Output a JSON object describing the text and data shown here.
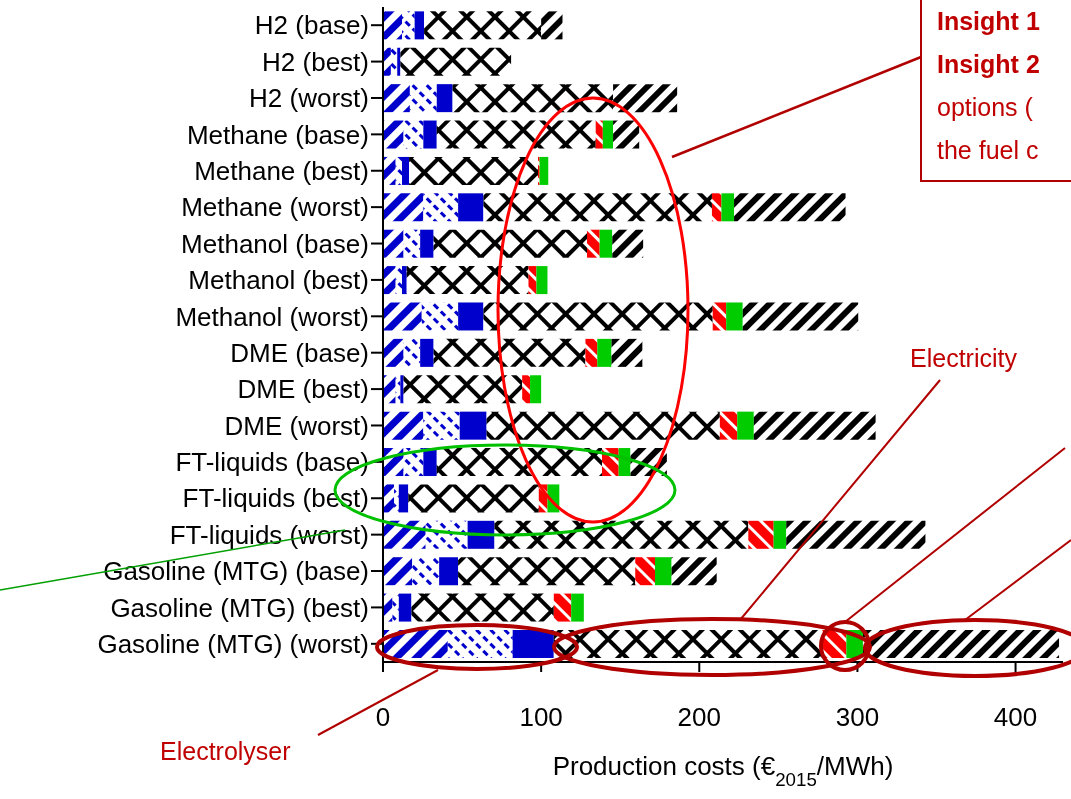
{
  "chart_data": {
    "type": "bar",
    "orientation": "horizontal",
    "stacked": true,
    "categories": [
      "H2 (base)",
      "H2 (best)",
      "H2 (worst)",
      "Methane (base)",
      "Methane (best)",
      "Methane (worst)",
      "Methanol (base)",
      "Methanol (best)",
      "Methanol (worst)",
      "DME (base)",
      "DME (best)",
      "DME (worst)",
      "FT-liquids (base)",
      "FT-liquids (best)",
      "FT-liquids (worst)",
      "Gasoline (MTG) (base)",
      "Gasoline (MTG) (best)",
      "Gasoline (MTG) (worst)"
    ],
    "series": [
      {
        "color": "#0000cc",
        "values": [
          12,
          5,
          17,
          13,
          8,
          25.5,
          13,
          8,
          24.5,
          13,
          8,
          25.5,
          13,
          7,
          27,
          18.5,
          6,
          41
        ]
      },
      {
        "color": "#0000cc",
        "values": [
          8,
          4,
          17,
          12.5,
          4,
          22,
          10.5,
          4,
          23,
          10.5,
          3,
          23,
          12.5,
          3,
          26.5,
          17,
          4,
          41
        ]
      },
      {
        "color": "#0000cc",
        "values": [
          6,
          2,
          10,
          8.5,
          4.5,
          16,
          8.5,
          3,
          16,
          8.5,
          2,
          17,
          8.5,
          6,
          17,
          12,
          8,
          26
        ]
      },
      {
        "color": "#000000",
        "values": [
          74,
          70,
          101.5,
          100.5,
          81.5,
          144.5,
          97,
          77,
          145,
          96,
          75,
          147.5,
          104.5,
          82.5,
          160.5,
          112,
          90,
          170
        ]
      },
      {
        "color": "#ff0000",
        "values": [
          null,
          null,
          null,
          4.5,
          1,
          6,
          8,
          5,
          8.5,
          7.5,
          5,
          11,
          10.5,
          5.5,
          16,
          12.5,
          11,
          15
        ]
      },
      {
        "color": "#00cc00",
        "values": [
          null,
          null,
          null,
          6.5,
          5.5,
          8,
          8,
          7,
          10.5,
          9,
          7,
          10.5,
          7.5,
          7.5,
          8,
          10.5,
          8,
          10.5
        ]
      },
      {
        "color": "#000000",
        "values": [
          13.5,
          null,
          40.5,
          16.5,
          null,
          70.5,
          19.5,
          null,
          73,
          19.5,
          null,
          77,
          23,
          null,
          88,
          28.5,
          null,
          124
        ]
      }
    ],
    "xlim": [
      0,
      430
    ],
    "xticks": [
      0,
      100,
      200,
      300,
      400
    ],
    "xlabel": "Production costs (€$_{2015}$/MWh)",
    "annotations": [
      "Electricity",
      "Electrolyser",
      "Insight 1",
      "Insight 2",
      "options (",
      "the fuel c"
    ],
    "legend": false,
    "grid": false
  }
}
